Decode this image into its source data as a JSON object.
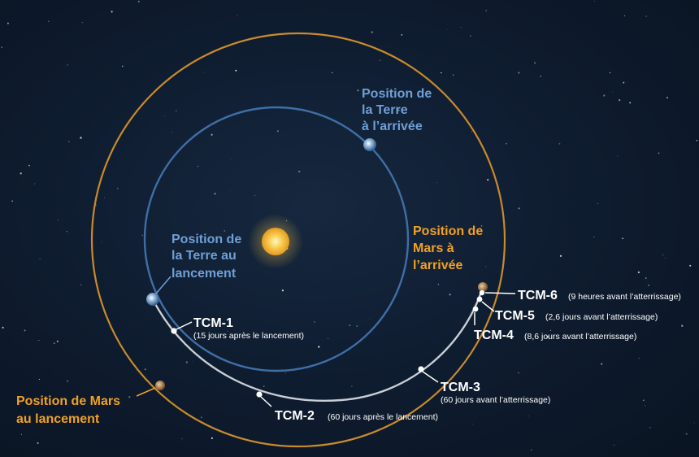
{
  "colors": {
    "earth_orbit": "#3f6fa6",
    "mars_orbit": "#c98a2c",
    "trajectory": "#c9ced6",
    "earth_label": "#6f9fd6",
    "mars_label": "#f2a024",
    "tcm_label": "#ffffff",
    "sun": "#f6c64a"
  },
  "labels": {
    "earth_arrival": [
      "Position de",
      "la Terre",
      "à l’arrivée"
    ],
    "earth_launch": [
      "Position de",
      "la Terre au",
      "lancement"
    ],
    "mars_arrival": [
      "Position de",
      "Mars à",
      "l’arrivée"
    ],
    "mars_launch": [
      "Position de Mars",
      "au lancement"
    ]
  },
  "tcm": [
    {
      "name": "TCM-1",
      "note": "(15 jours après le lancement)"
    },
    {
      "name": "TCM-2",
      "note": "(60 jours après le lancement)"
    },
    {
      "name": "TCM-3",
      "note": "(60 jours avant l’atterrissage)"
    },
    {
      "name": "TCM-4",
      "note": "(8,6 jours avant l’atterrissage)"
    },
    {
      "name": "TCM-5",
      "note": "(2,6 jours avant l’atterrissage)"
    },
    {
      "name": "TCM-6",
      "note": "(9 heures avant l’atterrissage)"
    }
  ]
}
